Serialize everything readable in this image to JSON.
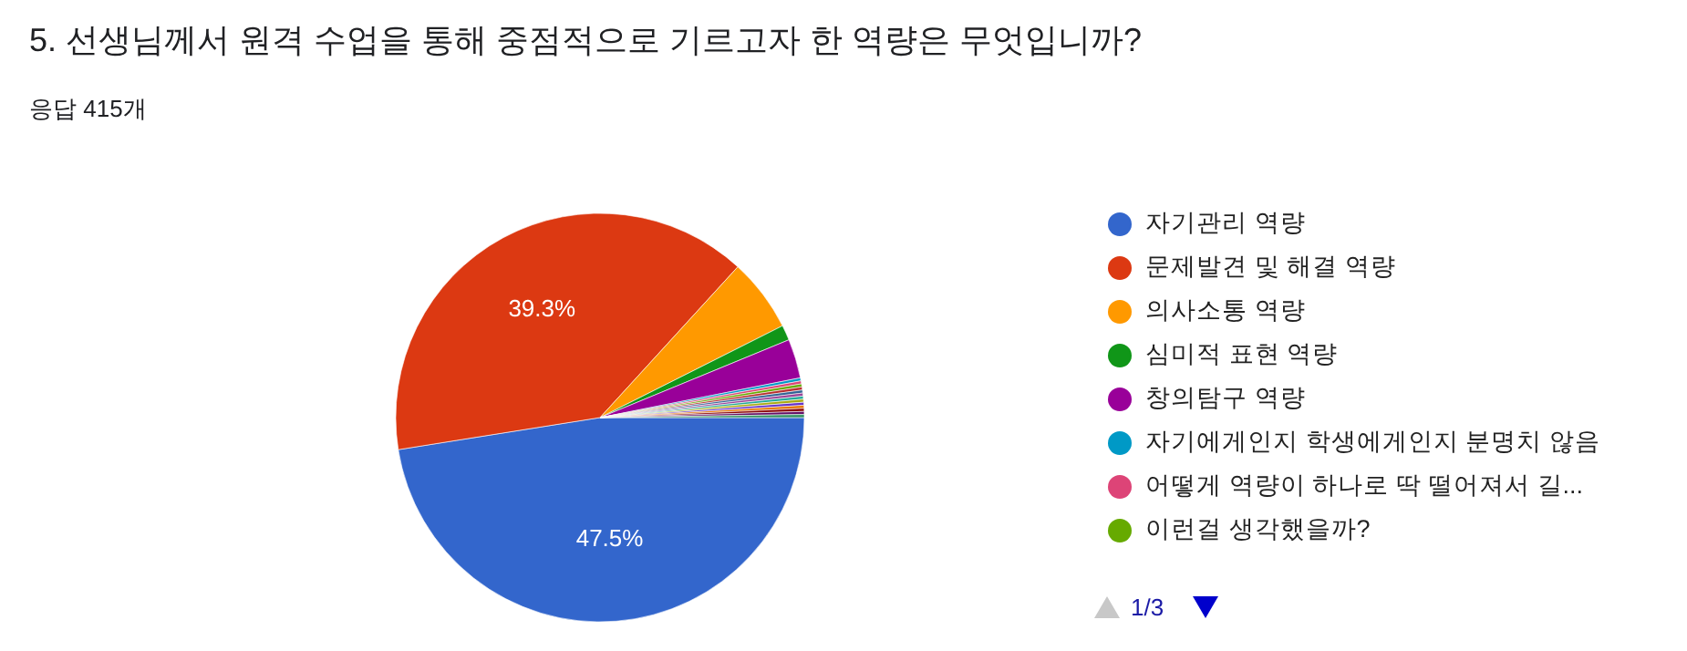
{
  "chart_data": {
    "type": "pie",
    "title": "5. 선생님께서 원격 수업을 통해 중점적으로 기르고자 한 역량은 무엇입니까?",
    "subtitle": "응답 415개",
    "categories": [
      "자기관리 역량",
      "문제발견 및 해결 역량",
      "의사소통 역량",
      "심미적 표현 역량",
      "창의탐구 역량",
      "자기에게인지 학생에게인지 분명치 않음",
      "어떻게 역량이 하나로 딱 떨어져서 길...",
      "이런걸 생각했을까?",
      null,
      null,
      null,
      null,
      null,
      null,
      null,
      null,
      null,
      null
    ],
    "values": [
      47.5,
      39.3,
      5.8,
      1.2,
      3.1,
      0.24,
      0.24,
      0.24,
      0.24,
      0.24,
      0.24,
      0.24,
      0.24,
      0.24,
      0.24,
      0.24,
      0.24,
      0.24
    ],
    "colors": [
      "#3366cc",
      "#dc3912",
      "#ff9900",
      "#109618",
      "#990099",
      "#0099c6",
      "#dd4477",
      "#66aa00",
      "#b82e2e",
      "#316395",
      "#994499",
      "#22aa99",
      "#aaaa11",
      "#6633cc",
      "#e67300",
      "#8b0707",
      "#651067",
      "#329262"
    ],
    "value_labels": [
      "47.5%",
      "39.3%",
      null,
      null,
      null,
      null,
      null,
      null,
      null,
      null,
      null,
      null,
      null,
      null,
      null,
      null,
      null,
      null
    ],
    "legend": "right",
    "annotations": [
      "1/3"
    ]
  }
}
